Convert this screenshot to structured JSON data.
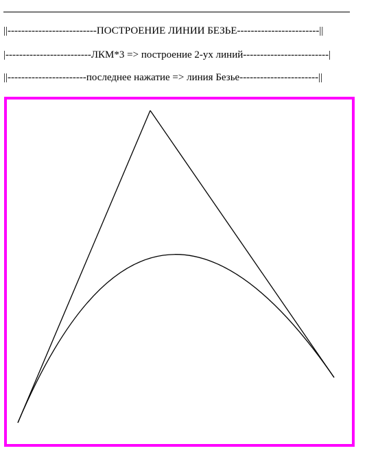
{
  "header": {
    "title_line": "||--------------------------ПОСТРОЕНИЕ ЛИНИИ БЕЗЬЕ------------------------||",
    "instruction_line_1": "|-------------------------ЛКМ*3 => построение 2-ух линий-------------------------|",
    "instruction_line_2": "||-----------------------последнее нажатие => линия Безье-----------------------||"
  },
  "canvas": {
    "border_color": "#ff00ff",
    "line_color": "#000000",
    "background_color": "#ffffff"
  }
}
